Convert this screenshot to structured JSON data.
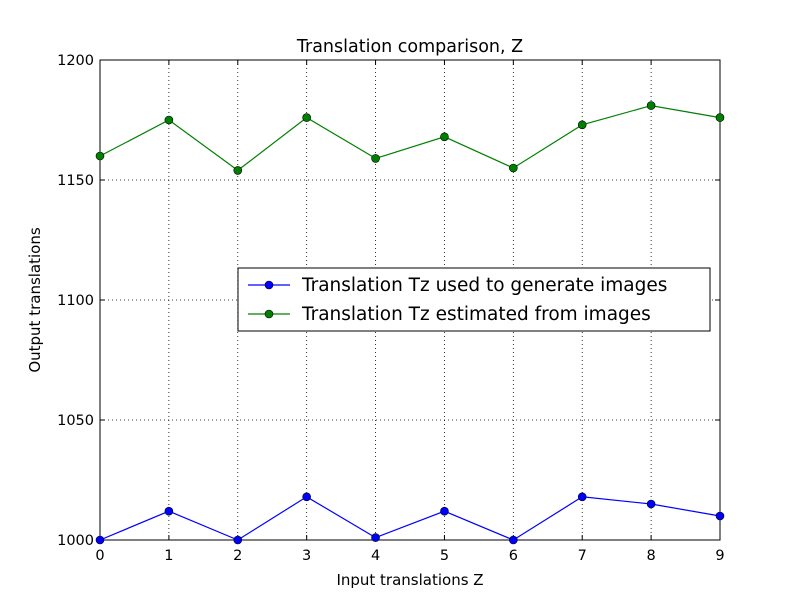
{
  "chart_data": {
    "type": "line",
    "title": "Translation comparison, Z",
    "xlabel": "Input translations Z",
    "ylabel": "Output translations",
    "xlim": [
      0,
      9
    ],
    "ylim": [
      1000,
      1200
    ],
    "x_ticks": [
      "0",
      "1",
      "2",
      "3",
      "4",
      "5",
      "6",
      "7",
      "8",
      "9"
    ],
    "y_ticks": [
      "1000",
      "1050",
      "1100",
      "1150",
      "1200"
    ],
    "grid": true,
    "legend_position": "center-right",
    "x": [
      0,
      1,
      2,
      3,
      4,
      5,
      6,
      7,
      8,
      9
    ],
    "series": [
      {
        "name": "Translation Tz used to generate images",
        "color": "#0000ff",
        "marker": "circle",
        "values": [
          1000,
          1012,
          1000,
          1018,
          1001,
          1012,
          1000,
          1018,
          1015,
          1010
        ]
      },
      {
        "name": "Translation Tz estimated from images",
        "color": "#008000",
        "marker": "circle",
        "values": [
          1160,
          1175,
          1154,
          1176,
          1159,
          1168,
          1155,
          1173,
          1181,
          1176
        ]
      }
    ]
  }
}
